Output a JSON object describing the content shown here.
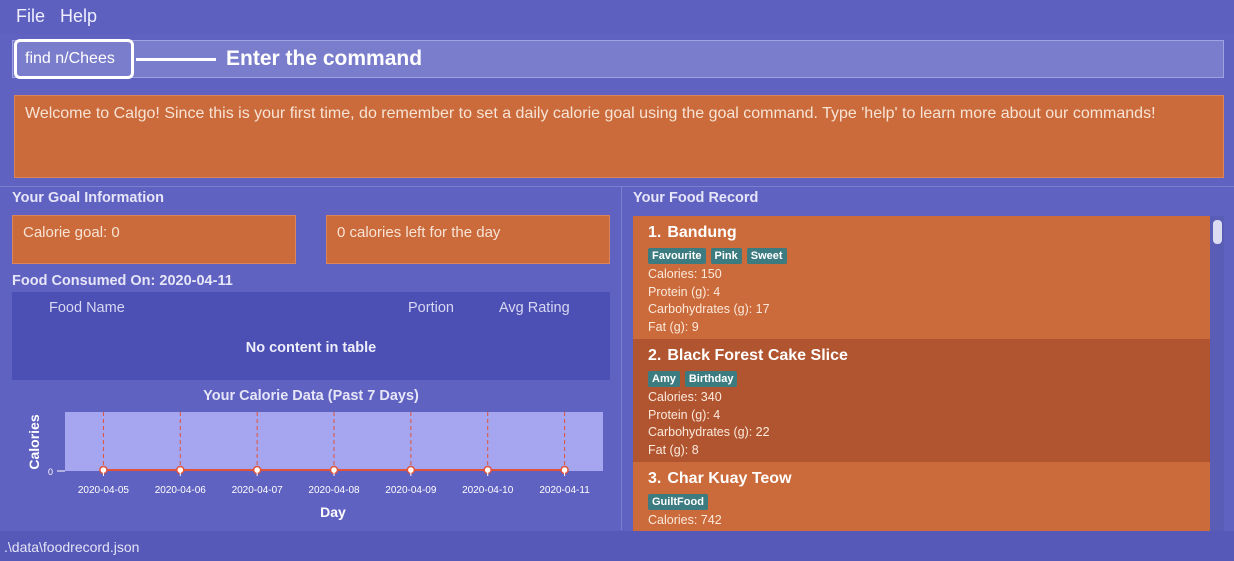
{
  "menu": {
    "file": "File",
    "help": "Help"
  },
  "command": {
    "value": "find n/Chees",
    "callout": "Enter the command"
  },
  "result_message": "Welcome to Calgo! Since this is your first time, do remember to set a daily calorie goal using the goal command. Type 'help' to learn more about our commands!",
  "goal": {
    "title": "Your Goal Information",
    "calorie_goal": "Calorie goal: 0",
    "calories_left": "0 calories left for the day"
  },
  "consumed": {
    "title": "Food Consumed On: 2020-04-11",
    "columns": [
      "Food Name",
      "Portion",
      "Avg Rating"
    ],
    "empty_text": "No content in table"
  },
  "colors": {
    "accent_orange": "#cb6a3a",
    "background": "#6062c1",
    "tag": "#3c7c80"
  },
  "chart_data": {
    "type": "line",
    "title": "Your Calorie Data (Past 7 Days)",
    "xlabel": "Day",
    "ylabel": "Calories",
    "x": [
      "2020-04-05",
      "2020-04-06",
      "2020-04-07",
      "2020-04-08",
      "2020-04-09",
      "2020-04-10",
      "2020-04-11"
    ],
    "series": [
      {
        "values": [
          0,
          0,
          0,
          0,
          0,
          0,
          0
        ]
      }
    ],
    "yticks": [
      "0"
    ],
    "ylim": [
      0,
      1
    ],
    "grid": true,
    "line_color": "#e0533a"
  },
  "food_record": {
    "title": "Your Food Record",
    "items": [
      {
        "num": "1.",
        "name": "Bandung",
        "tags": [
          "Favourite",
          "Pink",
          "Sweet"
        ],
        "calories": "Calories: 150",
        "protein": "Protein (g): 4",
        "carbs": "Carbohydrates (g): 17",
        "fat": "Fat (g): 9"
      },
      {
        "num": "2.",
        "name": "Black Forest Cake Slice",
        "tags": [
          "Amy",
          "Birthday"
        ],
        "calories": "Calories: 340",
        "protein": "Protein (g): 4",
        "carbs": "Carbohydrates (g): 22",
        "fat": "Fat (g): 8"
      },
      {
        "num": "3.",
        "name": "Char Kuay Teow",
        "tags": [
          "GuiltFood"
        ],
        "calories": "Calories: 742"
      }
    ]
  },
  "status": {
    "path": ".\\data\\foodrecord.json"
  }
}
